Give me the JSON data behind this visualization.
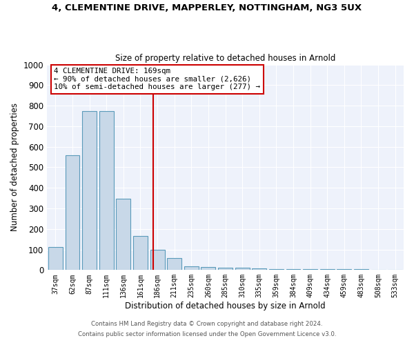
{
  "title1": "4, CLEMENTINE DRIVE, MAPPERLEY, NOTTINGHAM, NG3 5UX",
  "title2": "Size of property relative to detached houses in Arnold",
  "xlabel": "Distribution of detached houses by size in Arnold",
  "ylabel": "Number of detached properties",
  "bar_color": "#c8d8e8",
  "bar_edge_color": "#5a9aba",
  "categories": [
    "37sqm",
    "62sqm",
    "87sqm",
    "111sqm",
    "136sqm",
    "161sqm",
    "186sqm",
    "211sqm",
    "235sqm",
    "260sqm",
    "285sqm",
    "310sqm",
    "335sqm",
    "359sqm",
    "384sqm",
    "409sqm",
    "434sqm",
    "459sqm",
    "483sqm",
    "508sqm",
    "533sqm"
  ],
  "values": [
    112,
    560,
    775,
    775,
    347,
    165,
    98,
    57,
    18,
    13,
    10,
    10,
    8,
    5,
    5,
    6,
    6,
    6,
    6,
    0,
    0
  ],
  "annotation_text": "4 CLEMENTINE DRIVE: 169sqm\n← 90% of detached houses are smaller (2,626)\n10% of semi-detached houses are larger (277) →",
  "ylim": [
    0,
    1000
  ],
  "yticks": [
    0,
    100,
    200,
    300,
    400,
    500,
    600,
    700,
    800,
    900,
    1000
  ],
  "footer1": "Contains HM Land Registry data © Crown copyright and database right 2024.",
  "footer2": "Contains public sector information licensed under the Open Government Licence v3.0.",
  "background_color": "#eef2fb",
  "grid_color": "#ffffff",
  "red_line_color": "#cc0000",
  "annotation_box_edge": "#cc0000"
}
